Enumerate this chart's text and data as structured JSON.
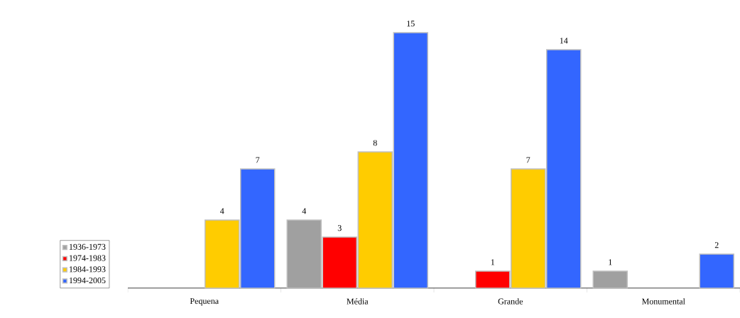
{
  "chart_data": {
    "type": "bar",
    "categories": [
      "Pequena",
      "Média",
      "Grande",
      "Monumental"
    ],
    "series": [
      {
        "name": "1936-1973",
        "color": "#a0a0a0",
        "values": [
          null,
          4,
          null,
          1
        ]
      },
      {
        "name": "1974-1983",
        "color": "#ff0000",
        "values": [
          null,
          3,
          1,
          null
        ]
      },
      {
        "name": "1984-1993",
        "color": "#ffcc00",
        "values": [
          4,
          8,
          7,
          null
        ]
      },
      {
        "name": "1994-2005",
        "color": "#3366ff",
        "values": [
          7,
          15,
          14,
          2
        ]
      }
    ],
    "tick_labels": "x",
    "data_labels": true,
    "legend": "bottom left",
    "grid": false
  }
}
